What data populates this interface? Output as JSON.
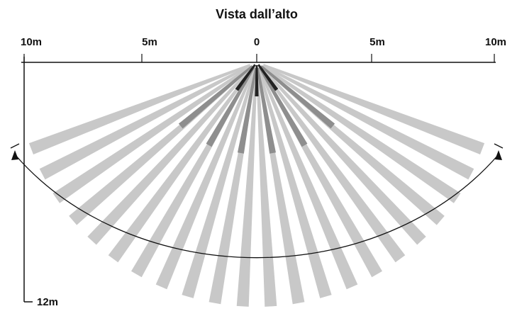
{
  "title": "Vista dall’alto",
  "scale_labels": {
    "left_10m": "10m",
    "left_5m": "5m",
    "center_0": "0",
    "right_5m": "5m",
    "right_10m": "10m",
    "depth_12m": "12m"
  },
  "colors": {
    "long_zone": "#c8c8c8",
    "mid_zone": "#8e8e8e",
    "short_zone": "#222222",
    "line": "#111111"
  },
  "zones": {
    "long_beam_count": 22,
    "mid_beam_count": 6,
    "short_beam_count": 3
  }
}
